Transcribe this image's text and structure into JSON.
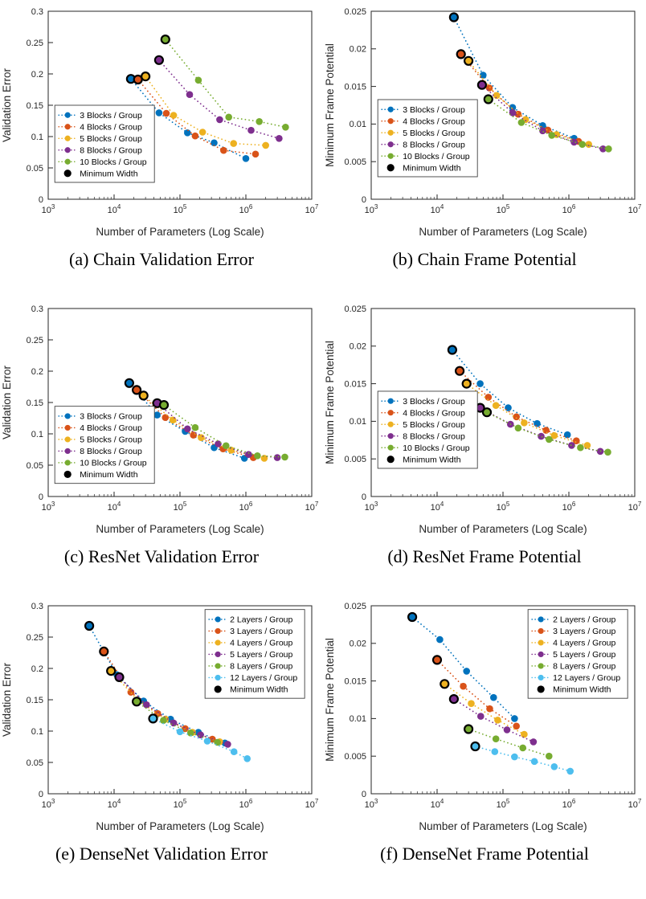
{
  "page": {
    "background": "#ffffff"
  },
  "palette": {
    "blue": "#0072BD",
    "orange": "#D95319",
    "yellow": "#EDB120",
    "purple": "#7E2F8E",
    "green": "#77AC30",
    "cyan": "#4DBEEE",
    "min_width": "#000000",
    "axis": "#262626"
  },
  "chart_data": [
    {
      "id": "a",
      "type": "line",
      "caption": "(a) Chain Validation Error",
      "xlabel": "Number of Parameters (Log Scale)",
      "ylabel": "Validation Error",
      "xscale": "log",
      "xlim_log": [
        3,
        7
      ],
      "xticks_log": [
        3,
        4,
        5,
        6,
        7
      ],
      "ylim": [
        0,
        0.3
      ],
      "yticks": [
        0,
        0.05,
        0.1,
        0.15,
        0.2,
        0.25,
        0.3
      ],
      "grid": false,
      "legend_pos": [
        0.025,
        0.5
      ],
      "min_width_label": "Minimum Width",
      "series": [
        {
          "name": "3 Blocks / Group",
          "color": "#0072BD",
          "points": [
            [
              18000,
              0.192
            ],
            [
              48000,
              0.138
            ],
            [
              130000,
              0.106
            ],
            [
              330000,
              0.09
            ],
            [
              1000000,
              0.065
            ]
          ]
        },
        {
          "name": "4 Blocks / Group",
          "color": "#D95319",
          "points": [
            [
              23000,
              0.191
            ],
            [
              62000,
              0.137
            ],
            [
              170000,
              0.101
            ],
            [
              460000,
              0.078
            ],
            [
              1400000,
              0.072
            ]
          ]
        },
        {
          "name": "5 Blocks / Group",
          "color": "#EDB120",
          "points": [
            [
              30000,
              0.196
            ],
            [
              80000,
              0.134
            ],
            [
              220000,
              0.107
            ],
            [
              650000,
              0.089
            ],
            [
              2000000,
              0.086
            ]
          ]
        },
        {
          "name": "8 Blocks / Group",
          "color": "#7E2F8E",
          "points": [
            [
              48000,
              0.222
            ],
            [
              140000,
              0.167
            ],
            [
              400000,
              0.127
            ],
            [
              1200000,
              0.11
            ],
            [
              3200000,
              0.097
            ]
          ]
        },
        {
          "name": "10 Blocks / Group",
          "color": "#77AC30",
          "points": [
            [
              60000,
              0.255
            ],
            [
              190000,
              0.19
            ],
            [
              550000,
              0.131
            ],
            [
              1600000,
              0.124
            ],
            [
              4000000,
              0.115
            ]
          ]
        }
      ]
    },
    {
      "id": "b",
      "type": "line",
      "caption": "(b) Chain Frame Potential",
      "xlabel": "Number of Parameters (Log Scale)",
      "ylabel": "Minimum Frame Potential",
      "xscale": "log",
      "xlim_log": [
        3,
        7
      ],
      "xticks_log": [
        3,
        4,
        5,
        6,
        7
      ],
      "ylim": [
        0,
        0.025
      ],
      "yticks": [
        0,
        0.005,
        0.01,
        0.015,
        0.02,
        0.025
      ],
      "grid": false,
      "legend_pos": [
        0.025,
        0.47
      ],
      "min_width_label": "Minimum Width",
      "series": [
        {
          "name": "3 Blocks / Group",
          "color": "#0072BD",
          "points": [
            [
              18000,
              0.0242
            ],
            [
              50000,
              0.0165
            ],
            [
              140000,
              0.0122
            ],
            [
              400000,
              0.0098
            ],
            [
              1200000,
              0.0081
            ]
          ]
        },
        {
          "name": "4 Blocks / Group",
          "color": "#D95319",
          "points": [
            [
              23000,
              0.0193
            ],
            [
              62000,
              0.0148
            ],
            [
              170000,
              0.0113
            ],
            [
              480000,
              0.0092
            ],
            [
              1400000,
              0.0077
            ]
          ]
        },
        {
          "name": "5 Blocks / Group",
          "color": "#EDB120",
          "points": [
            [
              30000,
              0.0184
            ],
            [
              80000,
              0.0138
            ],
            [
              220000,
              0.0106
            ],
            [
              650000,
              0.0086
            ],
            [
              2000000,
              0.0073
            ]
          ]
        },
        {
          "name": "8 Blocks / Group",
          "color": "#7E2F8E",
          "points": [
            [
              48000,
              0.0152
            ],
            [
              140000,
              0.0115
            ],
            [
              400000,
              0.0091
            ],
            [
              1200000,
              0.0076
            ],
            [
              3300000,
              0.0067
            ]
          ]
        },
        {
          "name": "10 Blocks / Group",
          "color": "#77AC30",
          "points": [
            [
              60000,
              0.0133
            ],
            [
              190000,
              0.0102
            ],
            [
              550000,
              0.0085
            ],
            [
              1600000,
              0.0073
            ],
            [
              4000000,
              0.0067
            ]
          ]
        }
      ]
    },
    {
      "id": "c",
      "type": "line",
      "caption": "(c) ResNet Validation Error",
      "xlabel": "Number of Parameters (Log Scale)",
      "ylabel": "Validation Error",
      "xscale": "log",
      "xlim_log": [
        3,
        7
      ],
      "xticks_log": [
        3,
        4,
        5,
        6,
        7
      ],
      "ylim": [
        0,
        0.3
      ],
      "yticks": [
        0,
        0.05,
        0.1,
        0.15,
        0.2,
        0.25,
        0.3
      ],
      "grid": false,
      "legend_pos": [
        0.025,
        0.52
      ],
      "min_width_label": "Minimum Width",
      "series": [
        {
          "name": "3 Blocks / Group",
          "color": "#0072BD",
          "points": [
            [
              17000,
              0.181
            ],
            [
              45000,
              0.13
            ],
            [
              120000,
              0.104
            ],
            [
              330000,
              0.078
            ],
            [
              950000,
              0.061
            ]
          ]
        },
        {
          "name": "4 Blocks / Group",
          "color": "#D95319",
          "points": [
            [
              22000,
              0.17
            ],
            [
              60000,
              0.126
            ],
            [
              160000,
              0.098
            ],
            [
              450000,
              0.076
            ],
            [
              1300000,
              0.062
            ]
          ]
        },
        {
          "name": "5 Blocks / Group",
          "color": "#EDB120",
          "points": [
            [
              28000,
              0.161
            ],
            [
              78000,
              0.122
            ],
            [
              210000,
              0.094
            ],
            [
              600000,
              0.074
            ],
            [
              1900000,
              0.061
            ]
          ]
        },
        {
          "name": "8 Blocks / Group",
          "color": "#7E2F8E",
          "points": [
            [
              45000,
              0.149
            ],
            [
              130000,
              0.108
            ],
            [
              380000,
              0.084
            ],
            [
              1100000,
              0.067
            ],
            [
              3000000,
              0.062
            ]
          ]
        },
        {
          "name": "10 Blocks / Group",
          "color": "#77AC30",
          "points": [
            [
              57000,
              0.146
            ],
            [
              170000,
              0.11
            ],
            [
              500000,
              0.081
            ],
            [
              1500000,
              0.065
            ],
            [
              3900000,
              0.063
            ]
          ]
        }
      ]
    },
    {
      "id": "d",
      "type": "line",
      "caption": "(d) ResNet Frame Potential",
      "xlabel": "Number of Parameters (Log Scale)",
      "ylabel": "Minimum Frame Potential",
      "xscale": "log",
      "xlim_log": [
        3,
        7
      ],
      "xticks_log": [
        3,
        4,
        5,
        6,
        7
      ],
      "ylim": [
        0,
        0.025
      ],
      "yticks": [
        0,
        0.005,
        0.01,
        0.015,
        0.02,
        0.025
      ],
      "grid": false,
      "legend_pos": [
        0.025,
        0.44
      ],
      "min_width_label": "Minimum Width",
      "series": [
        {
          "name": "3 Blocks / Group",
          "color": "#0072BD",
          "points": [
            [
              17000,
              0.0195
            ],
            [
              45000,
              0.015
            ],
            [
              120000,
              0.0118
            ],
            [
              330000,
              0.0097
            ],
            [
              950000,
              0.0082
            ]
          ]
        },
        {
          "name": "4 Blocks / Group",
          "color": "#D95319",
          "points": [
            [
              22000,
              0.0167
            ],
            [
              60000,
              0.0132
            ],
            [
              160000,
              0.0106
            ],
            [
              450000,
              0.0088
            ],
            [
              1300000,
              0.0074
            ]
          ]
        },
        {
          "name": "5 Blocks / Group",
          "color": "#EDB120",
          "points": [
            [
              28000,
              0.015
            ],
            [
              78000,
              0.0121
            ],
            [
              210000,
              0.0098
            ],
            [
              600000,
              0.0081
            ],
            [
              1900000,
              0.0068
            ]
          ]
        },
        {
          "name": "8 Blocks / Group",
          "color": "#7E2F8E",
          "points": [
            [
              45000,
              0.0118
            ],
            [
              130000,
              0.0096
            ],
            [
              380000,
              0.008
            ],
            [
              1100000,
              0.0068
            ],
            [
              3000000,
              0.006
            ]
          ]
        },
        {
          "name": "10 Blocks / Group",
          "color": "#77AC30",
          "points": [
            [
              57000,
              0.0112
            ],
            [
              170000,
              0.0091
            ],
            [
              500000,
              0.0076
            ],
            [
              1500000,
              0.0065
            ],
            [
              3900000,
              0.0059
            ]
          ]
        }
      ]
    },
    {
      "id": "e",
      "type": "line",
      "caption": "(e) DenseNet Validation Error",
      "xlabel": "Number of Parameters (Log Scale)",
      "ylabel": "Validation Error",
      "xscale": "log",
      "xlim_log": [
        3,
        7
      ],
      "xticks_log": [
        3,
        4,
        5,
        6,
        7
      ],
      "ylim": [
        0,
        0.3
      ],
      "yticks": [
        0,
        0.05,
        0.1,
        0.15,
        0.2,
        0.25,
        0.3
      ],
      "grid": false,
      "legend_pos": [
        0.595,
        0.02
      ],
      "min_width_label": "Minimum Width",
      "series": [
        {
          "name": "2 Layers / Group",
          "color": "#0072BD",
          "points": [
            [
              4200,
              0.268
            ],
            [
              11000,
              0.19
            ],
            [
              28000,
              0.148
            ],
            [
              72000,
              0.119
            ],
            [
              190000,
              0.098
            ],
            [
              480000,
              0.081
            ]
          ]
        },
        {
          "name": "3 Layers / Group",
          "color": "#D95319",
          "points": [
            [
              7000,
              0.227
            ],
            [
              18000,
              0.162
            ],
            [
              46000,
              0.128
            ],
            [
              120000,
              0.104
            ],
            [
              310000,
              0.087
            ]
          ]
        },
        {
          "name": "4 Layers / Group",
          "color": "#EDB120",
          "points": [
            [
              9000,
              0.196
            ],
            [
              23000,
              0.149
            ],
            [
              60000,
              0.119
            ],
            [
              155000,
              0.098
            ],
            [
              400000,
              0.083
            ]
          ]
        },
        {
          "name": "5 Layers / Group",
          "color": "#7E2F8E",
          "points": [
            [
              12000,
              0.186
            ],
            [
              31000,
              0.142
            ],
            [
              80000,
              0.113
            ],
            [
              205000,
              0.094
            ],
            [
              530000,
              0.079
            ]
          ]
        },
        {
          "name": "8 Layers / Group",
          "color": "#77AC30",
          "points": [
            [
              22000,
              0.147
            ],
            [
              56000,
              0.117
            ],
            [
              145000,
              0.097
            ],
            [
              370000,
              0.082
            ]
          ]
        },
        {
          "name": "12 Layers / Group",
          "color": "#4DBEEE",
          "points": [
            [
              39000,
              0.12
            ],
            [
              100000,
              0.099
            ],
            [
              260000,
              0.084
            ],
            [
              660000,
              0.067
            ],
            [
              1050000,
              0.056
            ]
          ]
        }
      ]
    },
    {
      "id": "f",
      "type": "line",
      "caption": "(f) DenseNet Frame Potential",
      "xlabel": "Number of Parameters (Log Scale)",
      "ylabel": "Minimum Frame Potential",
      "xscale": "log",
      "xlim_log": [
        3,
        7
      ],
      "xticks_log": [
        3,
        4,
        5,
        6,
        7
      ],
      "ylim": [
        0,
        0.025
      ],
      "yticks": [
        0,
        0.005,
        0.01,
        0.015,
        0.02,
        0.025
      ],
      "grid": false,
      "legend_pos": [
        0.595,
        0.02
      ],
      "min_width_label": "Minimum Width",
      "series": [
        {
          "name": "2 Layers / Group",
          "color": "#0072BD",
          "points": [
            [
              4200,
              0.0235
            ],
            [
              11000,
              0.0205
            ],
            [
              28000,
              0.0163
            ],
            [
              72000,
              0.0128
            ],
            [
              150000,
              0.01
            ]
          ]
        },
        {
          "name": "3 Layers / Group",
          "color": "#D95319",
          "points": [
            [
              10000,
              0.0178
            ],
            [
              25000,
              0.0143
            ],
            [
              63000,
              0.0113
            ],
            [
              160000,
              0.009
            ]
          ]
        },
        {
          "name": "4 Layers / Group",
          "color": "#EDB120",
          "points": [
            [
              13000,
              0.0146
            ],
            [
              33000,
              0.012
            ],
            [
              83000,
              0.0098
            ],
            [
              210000,
              0.0079
            ]
          ]
        },
        {
          "name": "5 Layers / Group",
          "color": "#7E2F8E",
          "points": [
            [
              18000,
              0.0126
            ],
            [
              46000,
              0.0103
            ],
            [
              115000,
              0.0085
            ],
            [
              290000,
              0.0069
            ]
          ]
        },
        {
          "name": "8 Layers / Group",
          "color": "#77AC30",
          "points": [
            [
              30000,
              0.0086
            ],
            [
              78000,
              0.0073
            ],
            [
              200000,
              0.0061
            ],
            [
              500000,
              0.005
            ]
          ]
        },
        {
          "name": "12 Layers / Group",
          "color": "#4DBEEE",
          "points": [
            [
              38000,
              0.0063
            ],
            [
              75000,
              0.0056
            ],
            [
              150000,
              0.0049
            ],
            [
              300000,
              0.0043
            ],
            [
              600000,
              0.0036
            ],
            [
              1050000,
              0.003
            ]
          ]
        }
      ]
    }
  ]
}
